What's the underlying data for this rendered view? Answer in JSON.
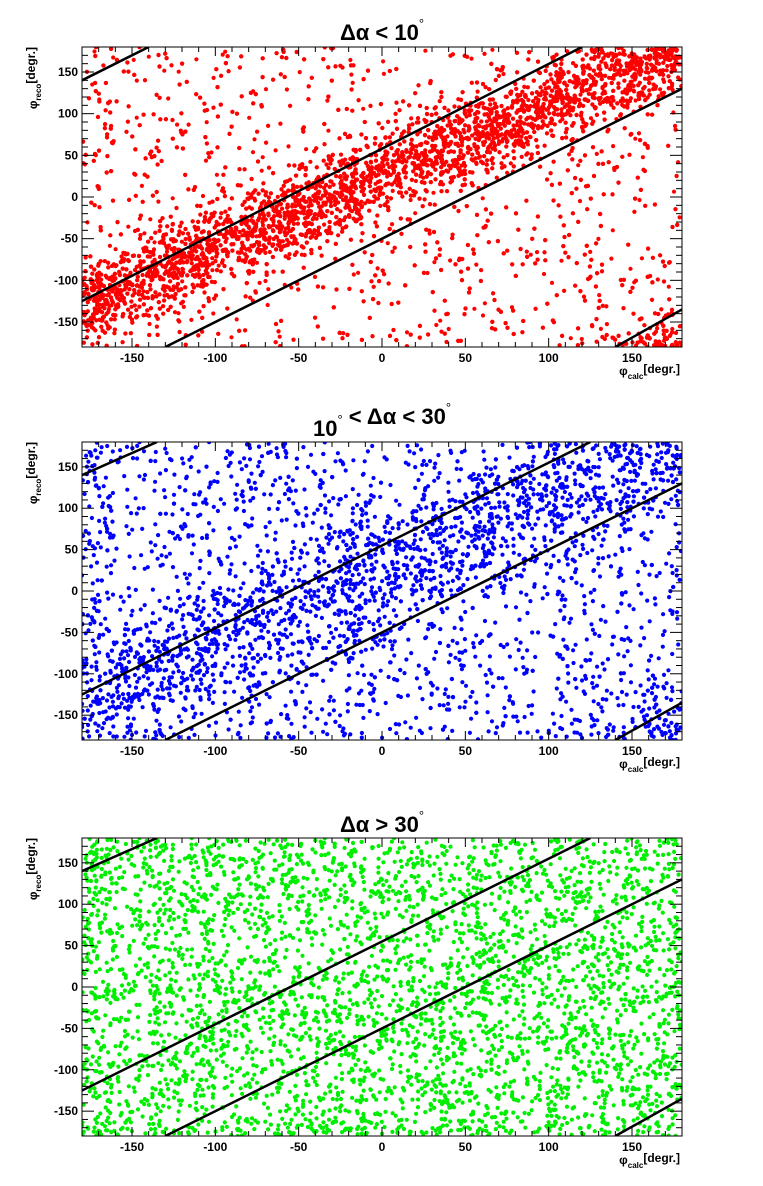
{
  "chart_data": [
    {
      "type": "scatter",
      "title_parts": [
        "Δα < 10",
        "°"
      ],
      "xlabel_symbol": "φ",
      "xlabel_sub": "calc",
      "xlabel_unit": "[degr.]",
      "ylabel_symbol": "φ",
      "ylabel_sub": "reco",
      "ylabel_unit": "[degr.]",
      "xlim": [
        -180,
        180
      ],
      "ylim": [
        -180,
        180
      ],
      "xticks": [
        -150,
        -100,
        -50,
        0,
        50,
        100,
        150
      ],
      "yticks": [
        -150,
        -100,
        -50,
        0,
        50,
        100,
        150
      ],
      "grid": false,
      "color": "#ff0000",
      "point_count": 6500,
      "concentration": 0.72,
      "band_width_deg": 25,
      "band_center_slope": 0.85,
      "band_center_offset": 25,
      "lines": [
        {
          "slope": 0.85,
          "intercept": 25,
          "offset": 360
        },
        {
          "slope": 0.85,
          "intercept": -20,
          "offset": -360
        },
        {
          "slope": 0.85,
          "intercept": 25,
          "offset": 0
        },
        {
          "slope": 0.85,
          "intercept": -20,
          "offset": 0
        }
      ],
      "lines_wrap": [
        {
          "x": [
            -180,
            -140
          ],
          "y": [
            140,
            180
          ]
        },
        {
          "x": [
            -180,
            120
          ],
          "y": [
            -125,
            180
          ]
        },
        {
          "x": [
            -130,
            180
          ],
          "y": [
            -180,
            130
          ]
        },
        {
          "x": [
            140,
            180
          ],
          "y": [
            -180,
            -135
          ]
        }
      ]
    },
    {
      "type": "scatter",
      "title_parts": [
        "10",
        "°",
        " < Δα < 30",
        "°"
      ],
      "xlabel_symbol": "φ",
      "xlabel_sub": "calc",
      "xlabel_unit": "[degr.]",
      "ylabel_symbol": "φ",
      "ylabel_sub": "reco",
      "ylabel_unit": "[degr.]",
      "xlim": [
        -180,
        180
      ],
      "ylim": [
        -180,
        180
      ],
      "xticks": [
        -150,
        -100,
        -50,
        0,
        50,
        100,
        150
      ],
      "yticks": [
        -150,
        -100,
        -50,
        0,
        50,
        100,
        150
      ],
      "grid": false,
      "color": "#0000ff",
      "point_count": 3400,
      "concentration": 0.45,
      "band_width_deg": 40,
      "band_center_slope": 0.85,
      "band_center_offset": 25,
      "lines_wrap": [
        {
          "x": [
            -180,
            -135
          ],
          "y": [
            140,
            180
          ]
        },
        {
          "x": [
            -180,
            125
          ],
          "y": [
            -125,
            180
          ]
        },
        {
          "x": [
            -130,
            180
          ],
          "y": [
            -180,
            130
          ]
        },
        {
          "x": [
            140,
            180
          ],
          "y": [
            -180,
            -135
          ]
        }
      ]
    },
    {
      "type": "scatter",
      "title_parts": [
        "Δα > 30",
        "°"
      ],
      "xlabel_symbol": "φ",
      "xlabel_sub": "calc",
      "xlabel_unit": "[degr.]",
      "ylabel_symbol": "φ",
      "ylabel_sub": "reco",
      "ylabel_unit": "[degr.]",
      "xlim": [
        -180,
        180
      ],
      "ylim": [
        -180,
        180
      ],
      "xticks": [
        -150,
        -100,
        -50,
        0,
        50,
        100,
        150
      ],
      "yticks": [
        -150,
        -100,
        -50,
        0,
        50,
        100,
        150
      ],
      "grid": false,
      "color": "#00ee00",
      "point_count": 3900,
      "concentration": 0.0,
      "band_width_deg": 40,
      "band_center_slope": 0.85,
      "band_center_offset": 25,
      "lines_wrap": [
        {
          "x": [
            -180,
            -135
          ],
          "y": [
            140,
            180
          ]
        },
        {
          "x": [
            -180,
            125
          ],
          "y": [
            -125,
            180
          ]
        },
        {
          "x": [
            -130,
            180
          ],
          "y": [
            -180,
            130
          ]
        },
        {
          "x": [
            140,
            180
          ],
          "y": [
            -180,
            -135
          ]
        }
      ]
    }
  ]
}
